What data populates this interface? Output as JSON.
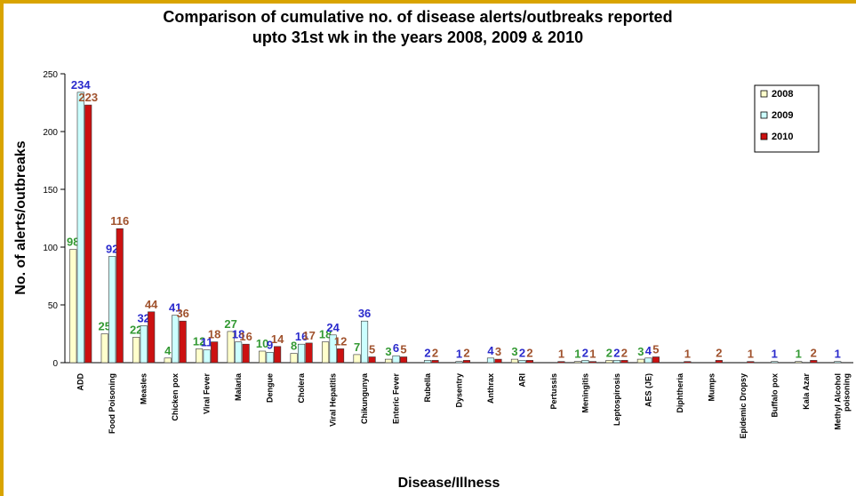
{
  "chart_data": {
    "type": "bar",
    "title_line1": "Comparison of cumulative no. of disease alerts/outbreaks reported",
    "title_line2": "upto 31st  wk in the years 2008, 2009 & 2010",
    "xlabel": "Disease/Illness",
    "ylabel": "No. of alerts/outbreaks",
    "ylim": [
      0,
      250
    ],
    "yticks": [
      "0",
      "50",
      "100",
      "150",
      "200",
      "250"
    ],
    "legend_position": "top-right",
    "categories": [
      "ADD",
      "Food Poisoning",
      "Measles",
      "Chicken pox",
      "Viral Fever",
      "Malaria",
      "Dengue",
      "Cholera",
      "Viral Hepatitis",
      "Chikungunya",
      "Enteric Fever",
      "Rubella",
      "Dysentry",
      "Anthrax",
      "ARI",
      "Pertussis",
      "Meningitis",
      "Leptospirosis",
      "AES (JE)",
      "Diphtheria",
      "Mumps",
      "Epidemic Dropsy",
      "Buffalo pox",
      "Kala Azar",
      "Methyl Alcohol poisoning"
    ],
    "series": [
      {
        "name": "2008",
        "color": "#ffffcc",
        "label_color": "#339933",
        "values": [
          98,
          25,
          22,
          4,
          12,
          27,
          10,
          8,
          18,
          7,
          3,
          0,
          0,
          0,
          3,
          0,
          1,
          2,
          3,
          0,
          0,
          0,
          0,
          1,
          0
        ],
        "labels": [
          "98",
          "25",
          "22",
          "4",
          "12",
          "27",
          "10",
          "8",
          "18",
          "7",
          "3",
          "",
          "",
          "",
          "3",
          "",
          "1",
          "2",
          "3",
          "",
          "",
          "",
          "",
          "1",
          ""
        ]
      },
      {
        "name": "2009",
        "color": "#ccffff",
        "label_color": "#2a2acc",
        "values": [
          234,
          92,
          32,
          41,
          11,
          18,
          9,
          16,
          24,
          36,
          6,
          2,
          1,
          4,
          2,
          0,
          2,
          2,
          4,
          0,
          0,
          0,
          1,
          0,
          1
        ],
        "labels": [
          "234",
          "92",
          "32",
          "41",
          "11",
          "18",
          "9",
          "16",
          "24",
          "36",
          "6",
          "2",
          "1",
          "4",
          "2",
          "",
          "2",
          "2",
          "4",
          "",
          "",
          "",
          "1",
          "",
          "1"
        ]
      },
      {
        "name": "2010",
        "color": "#cc1111",
        "label_color": "#a0522d",
        "values": [
          223,
          116,
          44,
          36,
          18,
          16,
          14,
          17,
          12,
          5,
          5,
          2,
          2,
          3,
          2,
          1,
          1,
          2,
          5,
          1,
          2,
          1,
          0,
          2,
          0
        ],
        "labels": [
          "223",
          "116",
          "44",
          "36",
          "18",
          "16",
          "14",
          "17",
          "12",
          "5",
          "5",
          "2",
          "2",
          "3",
          "2",
          "1",
          "1",
          "2",
          "5",
          "1",
          "2",
          "1",
          "",
          "2",
          ""
        ]
      }
    ]
  }
}
